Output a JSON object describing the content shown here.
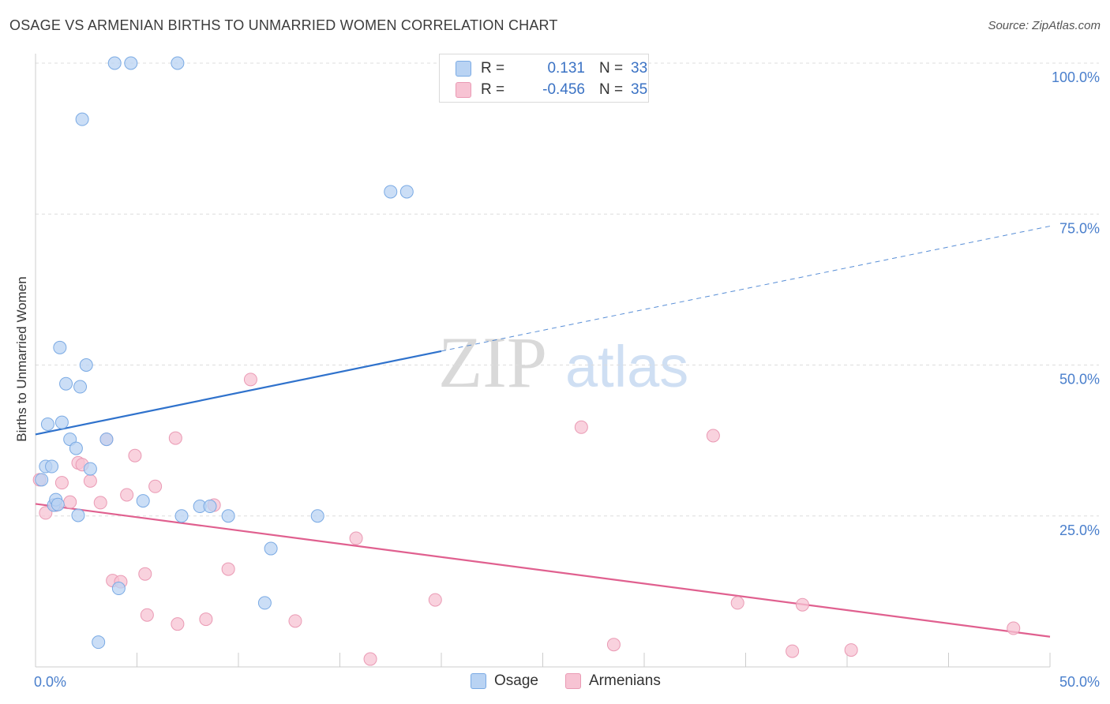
{
  "title": "OSAGE VS ARMENIAN BIRTHS TO UNMARRIED WOMEN CORRELATION CHART",
  "source": "Source: ZipAtlas.com",
  "watermark": {
    "zip": "ZIP",
    "atlas": "atlas"
  },
  "colors": {
    "osage_fill": "#b9d3f3",
    "osage_stroke": "#7aaae4",
    "osage_line": "#2f72cc",
    "armenian_fill": "#f7c3d3",
    "armenian_stroke": "#ea9ab4",
    "armenian_line": "#e0608f",
    "tick_label": "#4a7fcc",
    "grid": "#dddddd",
    "axis": "#cccccc"
  },
  "legend_top": {
    "rows": [
      {
        "r_label": "R =",
        "r_value": "0.131",
        "n_label": "N =",
        "n_value": "33"
      },
      {
        "r_label": "R =",
        "r_value": "-0.456",
        "n_label": "N =",
        "n_value": "35"
      }
    ]
  },
  "legend_bottom": {
    "osage": "Osage",
    "armenians": "Armenians"
  },
  "chart_data": {
    "type": "scatter",
    "title": "OSAGE VS ARMENIAN BIRTHS TO UNMARRIED WOMEN CORRELATION CHART",
    "xlabel": "",
    "ylabel": "Births to Unmarried Women",
    "xlim": [
      0,
      50
    ],
    "ylim": [
      0,
      100
    ],
    "x_tick_labels": [
      {
        "value": 0,
        "label": "0.0%"
      },
      {
        "value": 50,
        "label": "50.0%"
      }
    ],
    "y_tick_labels": [
      {
        "value": 25,
        "label": "25.0%"
      },
      {
        "value": 50,
        "label": "50.0%"
      },
      {
        "value": 75,
        "label": "75.0%"
      },
      {
        "value": 100,
        "label": "100.0%"
      }
    ],
    "x_minor_ticks": [
      5,
      10,
      15,
      20,
      25,
      30,
      35,
      40,
      45
    ],
    "grid": true,
    "legend_position": "top-center",
    "series": [
      {
        "name": "Osage",
        "r": 0.131,
        "n": 33,
        "points": [
          [
            0.3,
            31
          ],
          [
            0.5,
            33.2
          ],
          [
            0.6,
            40.2
          ],
          [
            0.8,
            33.2
          ],
          [
            0.9,
            26.8
          ],
          [
            1.0,
            27.7
          ],
          [
            1.2,
            52.9
          ],
          [
            1.5,
            46.9
          ],
          [
            1.7,
            37.7
          ],
          [
            2.0,
            36.2
          ],
          [
            2.1,
            25.1
          ],
          [
            2.2,
            46.4
          ],
          [
            2.3,
            90.7
          ],
          [
            2.5,
            50.0
          ],
          [
            2.7,
            32.8
          ],
          [
            3.1,
            4.1
          ],
          [
            3.5,
            37.7
          ],
          [
            3.9,
            100
          ],
          [
            4.1,
            13.0
          ],
          [
            4.7,
            100
          ],
          [
            5.3,
            27.5
          ],
          [
            7.0,
            100
          ],
          [
            7.2,
            25.0
          ],
          [
            8.1,
            26.6
          ],
          [
            8.6,
            26.6
          ],
          [
            9.5,
            25.0
          ],
          [
            11.3,
            10.6
          ],
          [
            11.6,
            19.6
          ],
          [
            13.9,
            25.0
          ],
          [
            1.3,
            40.5
          ],
          [
            1.1,
            26.9
          ],
          [
            17.5,
            78.7
          ],
          [
            18.3,
            78.7
          ]
        ],
        "trend": {
          "x0": 0,
          "y0": 38.5,
          "x1": 20,
          "y1": 52.3,
          "dashed_to_x": 50,
          "dashed_to_y": 73.0
        }
      },
      {
        "name": "Armenians",
        "r": -0.456,
        "n": 35,
        "points": [
          [
            0.2,
            31.0
          ],
          [
            0.5,
            25.5
          ],
          [
            1.0,
            26.8
          ],
          [
            1.3,
            30.5
          ],
          [
            1.7,
            27.3
          ],
          [
            2.1,
            33.8
          ],
          [
            2.3,
            33.5
          ],
          [
            2.7,
            30.8
          ],
          [
            3.2,
            27.2
          ],
          [
            3.5,
            37.7
          ],
          [
            3.8,
            14.3
          ],
          [
            4.2,
            14.1
          ],
          [
            4.5,
            28.5
          ],
          [
            4.9,
            35.0
          ],
          [
            5.4,
            15.4
          ],
          [
            5.5,
            8.6
          ],
          [
            5.9,
            29.9
          ],
          [
            6.9,
            37.9
          ],
          [
            7.0,
            7.1
          ],
          [
            8.4,
            7.9
          ],
          [
            8.8,
            26.8
          ],
          [
            9.5,
            16.2
          ],
          [
            10.6,
            47.6
          ],
          [
            12.8,
            7.6
          ],
          [
            15.8,
            21.3
          ],
          [
            16.5,
            1.3
          ],
          [
            19.7,
            11.1
          ],
          [
            26.9,
            39.7
          ],
          [
            28.5,
            3.7
          ],
          [
            33.4,
            38.3
          ],
          [
            34.6,
            10.6
          ],
          [
            37.3,
            2.6
          ],
          [
            37.8,
            10.3
          ],
          [
            40.2,
            2.8
          ],
          [
            48.2,
            6.4
          ]
        ],
        "trend": {
          "x0": 0,
          "y0": 27.0,
          "x1": 50,
          "y1": 5.0
        }
      }
    ]
  }
}
